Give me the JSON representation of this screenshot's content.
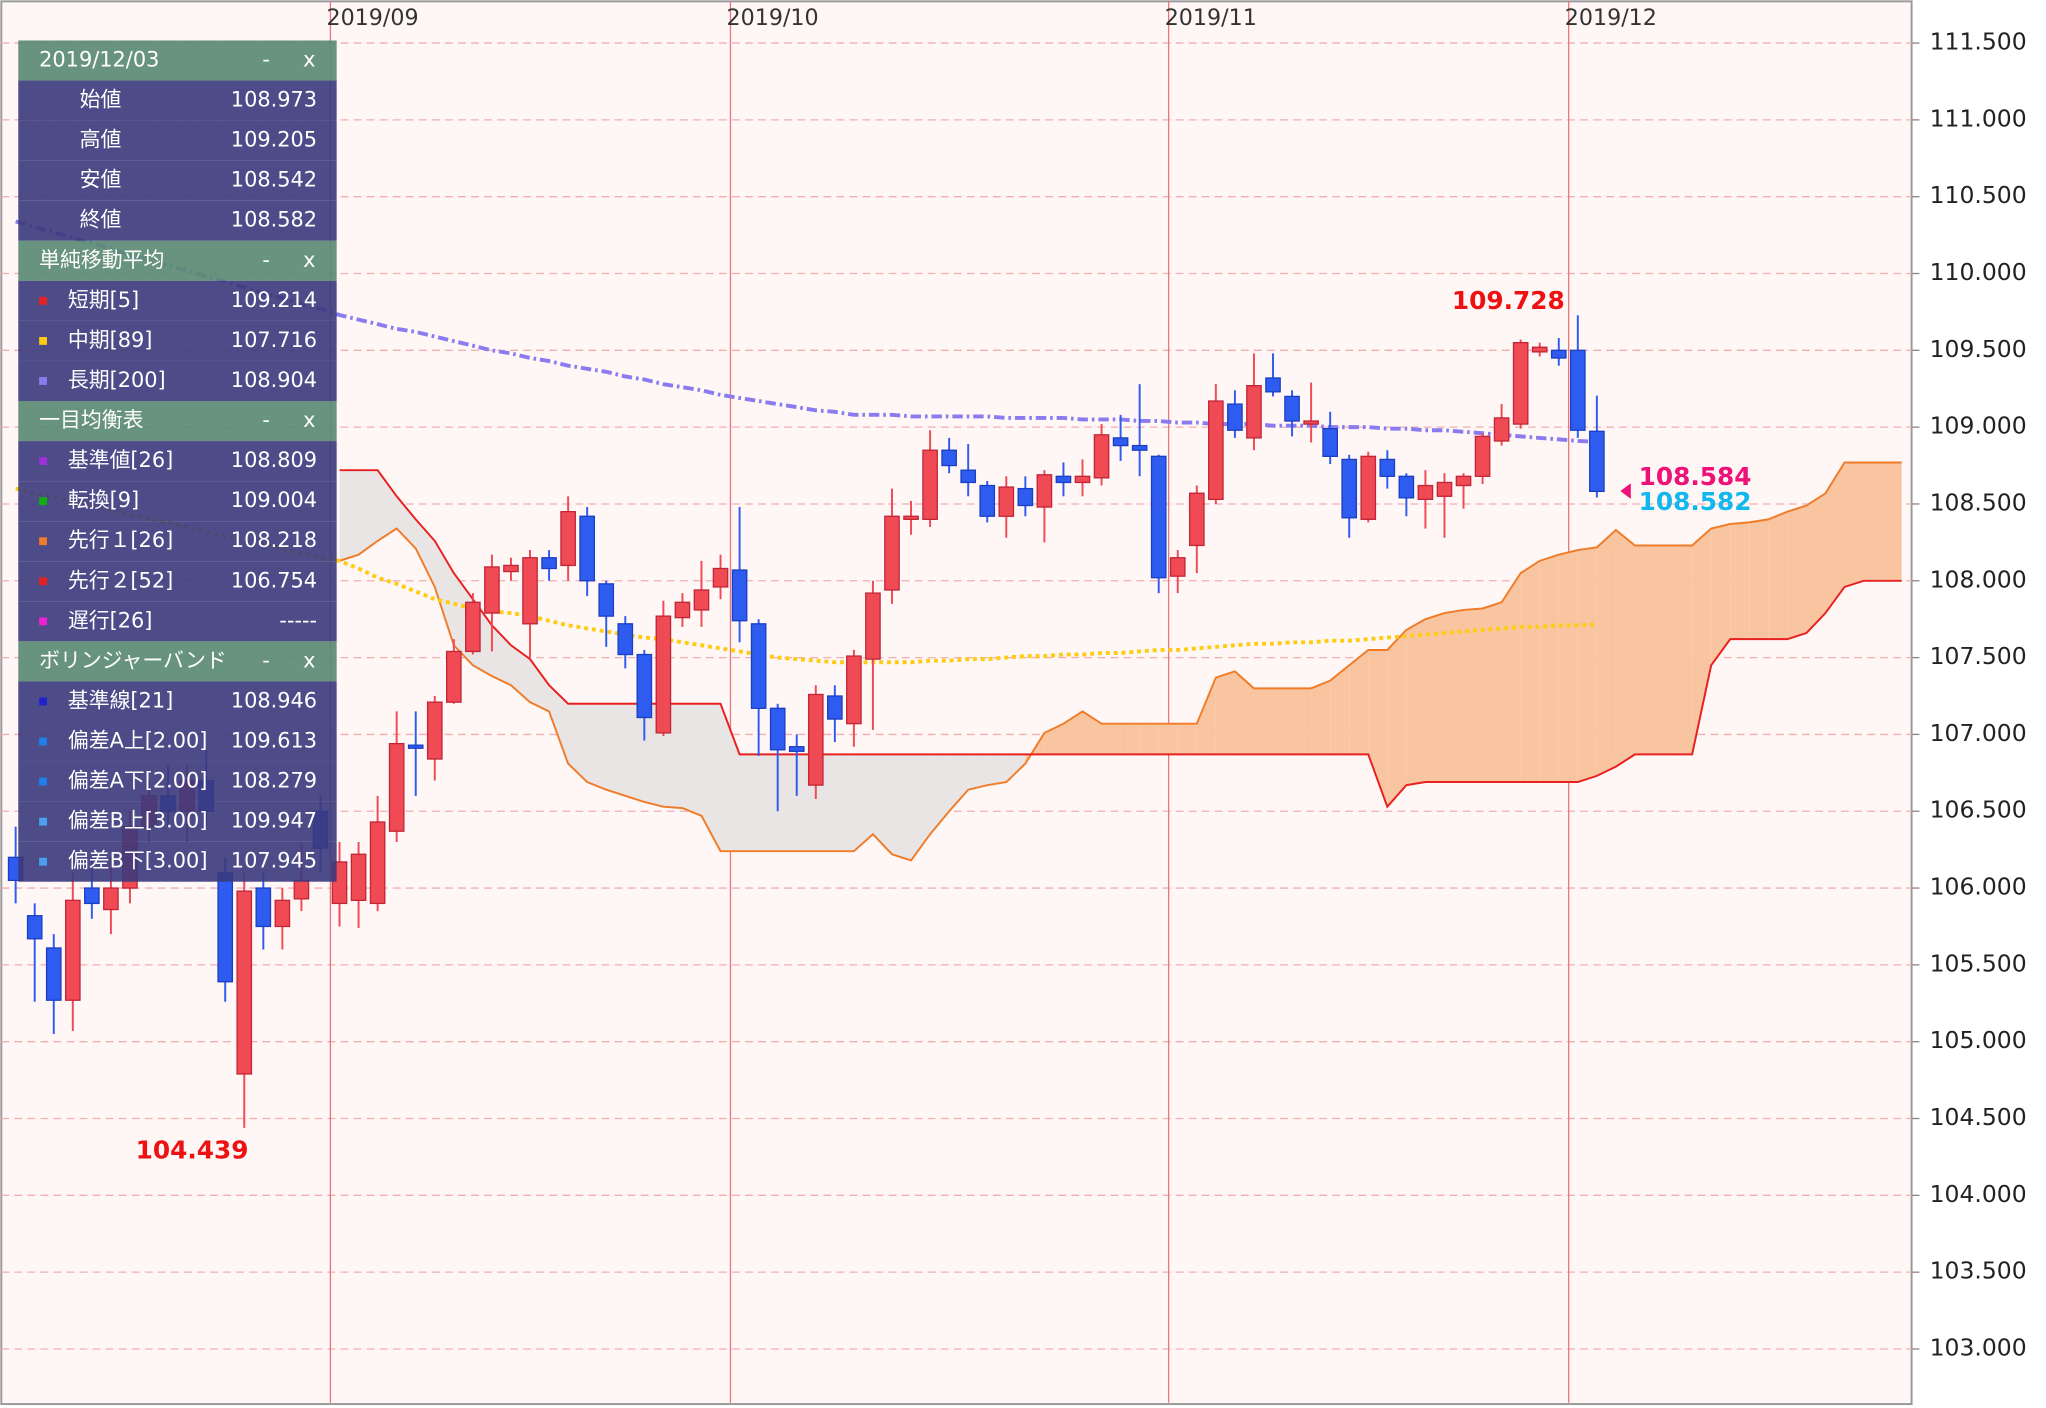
{
  "chart_data": {
    "type": "candlestick",
    "categories": [
      null,
      null,
      null,
      null,
      null,
      null,
      null,
      null,
      null,
      null,
      null,
      null,
      null,
      null,
      null,
      null,
      null,
      "2019/09",
      null,
      null,
      null,
      null,
      null,
      null,
      null,
      null,
      null,
      null,
      null,
      null,
      null,
      null,
      null,
      null,
      null,
      null,
      null,
      null,
      "2019/10",
      null,
      null,
      null,
      null,
      null,
      null,
      null,
      null,
      null,
      null,
      null,
      null,
      null,
      null,
      null,
      null,
      null,
      null,
      null,
      null,
      null,
      null,
      "2019/11",
      null,
      null,
      null,
      null,
      null,
      null,
      null,
      null,
      null,
      null,
      null,
      null,
      null,
      null,
      null,
      null,
      null,
      null,
      null,
      null,
      "2019/12",
      null,
      null,
      null,
      null,
      null,
      null,
      null,
      null,
      null,
      null,
      null,
      null,
      null,
      null,
      null,
      null,
      null
    ],
    "ohlc": {
      "up_color": "#f04a55",
      "down_color": "#2f5cf0",
      "open": [
        106.2,
        105.82,
        105.61,
        105.27,
        106.0,
        105.86,
        106.0,
        106.4,
        106.6,
        106.5,
        106.7,
        106.1,
        104.79,
        106.0,
        105.75,
        105.93,
        106.5,
        105.9,
        105.92,
        105.9,
        106.37,
        106.93,
        106.84,
        107.21,
        107.54,
        107.79,
        108.06,
        107.72,
        108.15,
        108.1,
        108.42,
        107.98,
        107.72,
        107.52,
        107.01,
        107.76,
        107.81,
        107.96,
        108.07,
        107.72,
        107.17,
        106.92,
        106.67,
        107.25,
        107.07,
        107.49,
        107.94,
        108.4,
        108.4,
        108.85,
        108.72,
        108.62,
        108.42,
        108.6,
        108.48,
        108.68,
        108.64,
        108.67,
        108.93,
        108.88,
        108.81,
        108.03,
        108.23,
        108.53,
        109.15,
        108.93,
        109.32,
        109.2,
        109.02,
        108.99,
        108.79,
        108.4,
        108.79,
        108.68,
        108.53,
        108.55,
        108.62,
        108.68,
        108.91,
        109.02,
        109.49,
        109.5,
        109.5,
        108.973,
        null,
        null,
        null,
        null,
        null,
        null,
        null,
        null,
        null,
        null,
        null,
        null,
        null,
        null,
        null,
        null
      ],
      "high": [
        106.4,
        105.9,
        105.7,
        106.1,
        106.2,
        106.2,
        106.5,
        106.7,
        106.8,
        106.8,
        106.9,
        106.2,
        106.1,
        106.1,
        106.0,
        106.3,
        106.6,
        106.3,
        106.3,
        106.6,
        107.15,
        107.15,
        107.25,
        107.62,
        107.92,
        108.17,
        108.15,
        108.2,
        108.2,
        108.55,
        108.48,
        108.0,
        107.77,
        107.55,
        107.87,
        107.92,
        108.13,
        108.17,
        108.48,
        107.75,
        107.2,
        107.0,
        107.32,
        107.32,
        107.55,
        108.0,
        108.6,
        108.52,
        108.98,
        108.93,
        108.89,
        108.65,
        108.68,
        108.68,
        108.72,
        108.77,
        108.79,
        109.02,
        109.08,
        109.28,
        108.82,
        108.2,
        108.62,
        109.28,
        109.24,
        109.48,
        109.48,
        109.24,
        109.29,
        109.1,
        108.82,
        108.84,
        108.85,
        108.7,
        108.72,
        108.7,
        108.7,
        108.96,
        109.15,
        109.57,
        109.55,
        109.58,
        109.728,
        109.205,
        null,
        null,
        null,
        null,
        null,
        null,
        null,
        null,
        null,
        null,
        null,
        null,
        null,
        null,
        null,
        null
      ],
      "low": [
        105.9,
        105.26,
        105.05,
        105.07,
        105.8,
        105.7,
        105.9,
        106.3,
        106.4,
        106.3,
        106.4,
        105.26,
        104.439,
        105.6,
        105.6,
        105.85,
        106.1,
        105.75,
        105.74,
        105.85,
        106.3,
        106.6,
        106.7,
        107.2,
        107.52,
        107.54,
        108.0,
        107.5,
        108.0,
        108.0,
        107.9,
        107.57,
        107.43,
        106.96,
        106.99,
        107.7,
        107.7,
        107.88,
        107.6,
        106.86,
        106.5,
        106.6,
        106.58,
        106.95,
        106.92,
        107.03,
        107.85,
        108.3,
        108.35,
        108.7,
        108.55,
        108.38,
        108.28,
        108.42,
        108.25,
        108.55,
        108.55,
        108.62,
        108.78,
        108.68,
        107.92,
        107.92,
        108.05,
        108.5,
        108.93,
        108.85,
        109.2,
        108.94,
        108.9,
        108.76,
        108.28,
        108.38,
        108.6,
        108.42,
        108.34,
        108.28,
        108.47,
        108.63,
        108.88,
        108.99,
        109.46,
        109.4,
        108.93,
        108.542,
        null,
        null,
        null,
        null,
        null,
        null,
        null,
        null,
        null,
        null,
        null,
        null,
        null,
        null,
        null,
        null
      ],
      "close": [
        106.05,
        105.67,
        105.27,
        105.92,
        105.9,
        106.0,
        106.4,
        106.6,
        106.5,
        106.7,
        106.5,
        105.39,
        105.98,
        105.75,
        105.92,
        106.05,
        106.26,
        106.17,
        106.22,
        106.43,
        106.94,
        106.91,
        107.21,
        107.54,
        107.86,
        108.09,
        108.1,
        108.15,
        108.08,
        108.45,
        108.0,
        107.77,
        107.52,
        107.11,
        107.77,
        107.86,
        107.94,
        108.08,
        107.74,
        107.17,
        106.9,
        106.89,
        107.26,
        107.1,
        107.51,
        107.92,
        108.42,
        108.42,
        108.85,
        108.75,
        108.64,
        108.42,
        108.61,
        108.49,
        108.69,
        108.64,
        108.68,
        108.95,
        108.88,
        108.85,
        108.02,
        108.15,
        108.57,
        109.17,
        108.98,
        109.27,
        109.23,
        109.04,
        109.04,
        108.81,
        108.41,
        108.81,
        108.68,
        108.54,
        108.62,
        108.64,
        108.68,
        108.94,
        109.06,
        109.55,
        109.52,
        109.45,
        108.98,
        108.582,
        null,
        null,
        null,
        null,
        null,
        null,
        null,
        null,
        null,
        null,
        null,
        null,
        null,
        null,
        null,
        null
      ]
    },
    "lines": [
      {
        "color": "#8a7cf0",
        "dash": "8 3 2 3",
        "values": [
          110.34,
          110.3,
          110.27,
          110.23,
          110.2,
          110.16,
          110.12,
          110.09,
          110.05,
          110.02,
          109.98,
          109.95,
          109.91,
          109.87,
          109.84,
          109.8,
          109.77,
          109.73,
          109.7,
          109.67,
          109.64,
          109.62,
          109.59,
          109.56,
          109.53,
          109.5,
          109.48,
          109.45,
          109.43,
          109.4,
          109.38,
          109.36,
          109.33,
          109.31,
          109.28,
          109.26,
          109.24,
          109.21,
          109.19,
          109.17,
          109.15,
          109.13,
          109.11,
          109.1,
          109.08,
          109.08,
          109.08,
          109.07,
          109.07,
          109.07,
          109.07,
          109.07,
          109.06,
          109.06,
          109.06,
          109.06,
          109.05,
          109.05,
          109.05,
          109.04,
          109.04,
          109.03,
          109.03,
          109.02,
          109.02,
          109.02,
          109.01,
          109.01,
          109.01,
          109.0,
          109.0,
          109.0,
          108.99,
          108.99,
          108.98,
          108.98,
          108.97,
          108.96,
          108.95,
          108.94,
          108.93,
          108.92,
          108.91,
          108.904,
          null,
          null,
          null,
          null,
          null,
          null,
          null,
          null,
          null,
          null,
          null,
          null,
          null,
          null,
          null,
          null
        ]
      },
      {
        "color": "#ffcc11",
        "dash": "3 3",
        "values": [
          108.6,
          108.57,
          108.54,
          108.52,
          108.49,
          108.46,
          108.43,
          108.4,
          108.38,
          108.35,
          108.32,
          108.29,
          108.26,
          108.24,
          108.21,
          108.18,
          108.15,
          108.13,
          108.08,
          108.02,
          107.98,
          107.93,
          107.88,
          107.85,
          107.82,
          107.8,
          107.79,
          107.77,
          107.74,
          107.71,
          107.69,
          107.67,
          107.65,
          107.63,
          107.62,
          107.6,
          107.58,
          107.56,
          107.54,
          107.52,
          107.5,
          107.49,
          107.48,
          107.47,
          107.47,
          107.47,
          107.47,
          107.47,
          107.48,
          107.48,
          107.49,
          107.49,
          107.5,
          107.51,
          107.51,
          107.52,
          107.52,
          107.53,
          107.53,
          107.54,
          107.55,
          107.55,
          107.56,
          107.57,
          107.58,
          107.59,
          107.59,
          107.6,
          107.6,
          107.61,
          107.61,
          107.62,
          107.63,
          107.64,
          107.65,
          107.66,
          107.67,
          107.68,
          107.69,
          107.7,
          107.7,
          107.71,
          107.71,
          107.716,
          null,
          null,
          null,
          null,
          null,
          null,
          null,
          null,
          null,
          null,
          null,
          null,
          null,
          null,
          null,
          null
        ]
      }
    ],
    "cloud": {
      "span1_color": "#f07c28",
      "span2_color": "#e82020",
      "up_fill": "#f9c4a0",
      "down_fill": "#e9e5e5",
      "span1": [
        null,
        null,
        null,
        null,
        null,
        null,
        null,
        null,
        null,
        null,
        null,
        null,
        null,
        null,
        null,
        null,
        null,
        108.13,
        108.17,
        108.26,
        108.34,
        108.21,
        107.96,
        107.58,
        107.45,
        107.38,
        107.32,
        107.21,
        107.15,
        106.81,
        106.69,
        106.64,
        106.6,
        106.56,
        106.53,
        106.52,
        106.47,
        106.24,
        106.24,
        106.24,
        106.24,
        106.24,
        106.24,
        106.24,
        106.24,
        106.35,
        106.22,
        106.18,
        106.35,
        106.5,
        106.64,
        106.67,
        106.69,
        106.81,
        107.01,
        107.07,
        107.15,
        107.07,
        107.07,
        107.07,
        107.07,
        107.07,
        107.07,
        107.37,
        107.41,
        107.3,
        107.3,
        107.3,
        107.3,
        107.35,
        107.45,
        107.55,
        107.55,
        107.68,
        107.75,
        107.79,
        107.81,
        107.82,
        107.86,
        108.05,
        108.13,
        108.17,
        108.2,
        108.218,
        108.33,
        108.23,
        108.23,
        108.23,
        108.23,
        108.34,
        108.37,
        108.38,
        108.4,
        108.45,
        108.49,
        108.57,
        108.77,
        108.77,
        108.77,
        108.77
      ],
      "span2": [
        null,
        null,
        null,
        null,
        null,
        null,
        null,
        null,
        null,
        null,
        null,
        null,
        null,
        null,
        null,
        null,
        null,
        108.72,
        108.72,
        108.72,
        108.55,
        108.4,
        108.26,
        108.05,
        107.88,
        107.71,
        107.58,
        107.49,
        107.32,
        107.2,
        107.2,
        107.2,
        107.2,
        107.2,
        107.2,
        107.2,
        107.2,
        107.2,
        106.87,
        106.87,
        106.87,
        106.87,
        106.87,
        106.87,
        106.87,
        106.87,
        106.87,
        106.87,
        106.87,
        106.87,
        106.87,
        106.87,
        106.87,
        106.87,
        106.87,
        106.87,
        106.87,
        106.87,
        106.87,
        106.87,
        106.87,
        106.87,
        106.87,
        106.87,
        106.87,
        106.87,
        106.87,
        106.87,
        106.87,
        106.87,
        106.87,
        106.87,
        106.53,
        106.67,
        106.69,
        106.69,
        106.69,
        106.69,
        106.69,
        106.69,
        106.69,
        106.69,
        106.69,
        106.73,
        106.79,
        106.87,
        106.87,
        106.87,
        106.87,
        107.45,
        107.62,
        107.62,
        107.62,
        107.62,
        107.66,
        107.79,
        107.96,
        108.0,
        108.0,
        108.0
      ]
    },
    "extreme_label_color": "#ee1111",
    "price_markers": [
      {
        "value": 108.584,
        "color": "#ee1177"
      },
      {
        "value": 108.582,
        "color": "#11b8ee"
      }
    ],
    "ylim": [
      102.65,
      111.78
    ],
    "yticks": [
      {
        "value": 103,
        "label": "103.000"
      },
      {
        "value": 103.5,
        "label": "103.500"
      },
      {
        "value": 104,
        "label": "104.000"
      },
      {
        "value": 104.5,
        "label": "104.500"
      },
      {
        "value": 105,
        "label": "105.000"
      },
      {
        "value": 105.5,
        "label": "105.500"
      },
      {
        "value": 106,
        "label": "106.000"
      },
      {
        "value": 106.5,
        "label": "106.500"
      },
      {
        "value": 107,
        "label": "107.000"
      },
      {
        "value": 107.5,
        "label": "107.500"
      },
      {
        "value": 108,
        "label": "108.000"
      },
      {
        "value": 108.5,
        "label": "108.500"
      },
      {
        "value": 109,
        "label": "109.000"
      },
      {
        "value": 109.5,
        "label": "109.500"
      },
      {
        "value": 110,
        "label": "110.000"
      },
      {
        "value": 110.5,
        "label": "110.500"
      },
      {
        "value": 111,
        "label": "111.000"
      },
      {
        "value": 111.5,
        "label": "111.500"
      }
    ],
    "grid": true
  },
  "panel": {
    "buttons": {
      "minimize": "-",
      "close": "x"
    },
    "sections": [
      {
        "title": "2019/12/03",
        "rows": [
          {
            "label": "始値",
            "value": "108.973"
          },
          {
            "label": "高値",
            "value": "109.205"
          },
          {
            "label": "安値",
            "value": "108.542"
          },
          {
            "label": "終値",
            "value": "108.582"
          }
        ]
      },
      {
        "title": "単純移動平均",
        "rows": [
          {
            "label": "短期[5]",
            "value": "109.214",
            "color": "#e82020"
          },
          {
            "label": "中期[89]",
            "value": "107.716",
            "color": "#ffcc11"
          },
          {
            "label": "長期[200]",
            "value": "108.904",
            "color": "#8a7cf0"
          }
        ]
      },
      {
        "title": "一目均衡表",
        "rows": [
          {
            "label": "基準値[26]",
            "value": "108.809",
            "color": "#a030d8"
          },
          {
            "label": "転換[9]",
            "value": "109.004",
            "color": "#10b010"
          },
          {
            "label": "先行１[26]",
            "value": "108.218",
            "color": "#f07c28"
          },
          {
            "label": "先行２[52]",
            "value": "106.754",
            "color": "#e82020"
          },
          {
            "label": "遅行[26]",
            "value": "-----",
            "color": "#f020d0"
          }
        ]
      },
      {
        "title": "ボリンジャーバンド",
        "rows": [
          {
            "label": "基準線[21]",
            "value": "108.946",
            "color": "#2222cc"
          },
          {
            "label": "偏差A上[2.00]",
            "value": "109.613",
            "color": "#1e80e8"
          },
          {
            "label": "偏差A下[2.00]",
            "value": "108.279",
            "color": "#1e80e8"
          },
          {
            "label": "偏差B上[3.00]",
            "value": "109.947",
            "color": "#4aa0ee"
          },
          {
            "label": "偏差B下[3.00]",
            "value": "107.945",
            "color": "#4aa0ee"
          }
        ]
      }
    ]
  }
}
